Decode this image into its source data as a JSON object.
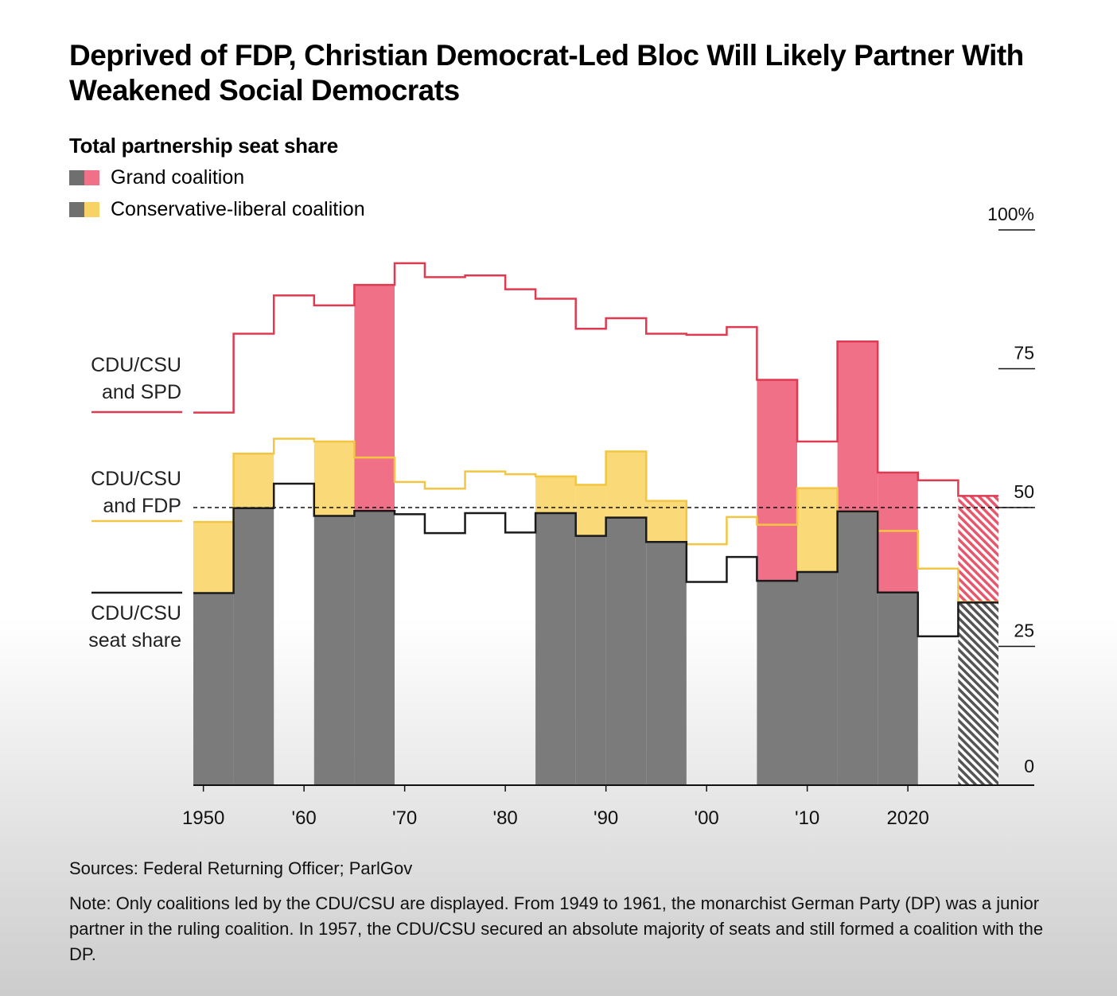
{
  "title": "Deprived of FDP, Christian Democrat-Led Bloc Will Likely Partner With Weakened Social Democrats",
  "subtitle": "Total partnership seat share",
  "legend": [
    {
      "label": "Grand coalition",
      "colors": [
        "#6f6f6f",
        "#f07088"
      ]
    },
    {
      "label": "Conservative-liberal coalition",
      "colors": [
        "#6f6f6f",
        "#f7d266"
      ]
    }
  ],
  "colors": {
    "cdu_fill": "#7b7b7b",
    "spd_fill": "#f07088",
    "fdp_fill": "#f9d978",
    "spd_line": "#e03a50",
    "fdp_line": "#f2c644",
    "cdu_line": "#1a1a1a"
  },
  "series_labels": {
    "spd": [
      "CDU/CSU",
      "and SPD"
    ],
    "fdp": [
      "CDU/CSU",
      "and FDP"
    ],
    "cdu": [
      "CDU/CSU",
      "seat share"
    ]
  },
  "chart_data": {
    "type": "area",
    "x_tick_labels": [
      "1950",
      "'60",
      "'70",
      "'80",
      "'90",
      "'00",
      "'10",
      "2020"
    ],
    "x_ticks": [
      1950,
      1960,
      1970,
      1980,
      1990,
      2000,
      2010,
      2020
    ],
    "y_tick_labels": [
      "100%",
      "75",
      "50",
      "25",
      "0"
    ],
    "y_ticks": [
      100,
      75,
      50,
      25,
      0
    ],
    "ylim": [
      0,
      100
    ],
    "xlim": [
      1949,
      2029
    ],
    "reference_line": 50,
    "periods": [
      {
        "start": 1949,
        "end": 1953,
        "cdu": 34.6,
        "fdp": 47.4,
        "spd": 67.1,
        "coalition": "conservative-liberal"
      },
      {
        "start": 1953,
        "end": 1957,
        "cdu": 49.9,
        "fdp": 59.7,
        "spd": 81.3,
        "coalition": "conservative-liberal"
      },
      {
        "start": 1957,
        "end": 1961,
        "cdu": 54.3,
        "fdp": 62.4,
        "spd": 88.2,
        "coalition": "other"
      },
      {
        "start": 1961,
        "end": 1965,
        "cdu": 48.5,
        "fdp": 61.9,
        "spd": 86.4,
        "coalition": "conservative-liberal"
      },
      {
        "start": 1965,
        "end": 1969,
        "cdu": 49.4,
        "fdp": 59.0,
        "spd": 90.1,
        "coalition": "grand"
      },
      {
        "start": 1969,
        "end": 1972,
        "cdu": 48.8,
        "fdp": 54.6,
        "spd": 94.0,
        "coalition": "none"
      },
      {
        "start": 1972,
        "end": 1976,
        "cdu": 45.4,
        "fdp": 53.4,
        "spd": 91.5,
        "coalition": "none"
      },
      {
        "start": 1976,
        "end": 1980,
        "cdu": 49.0,
        "fdp": 56.5,
        "spd": 91.8,
        "coalition": "none"
      },
      {
        "start": 1980,
        "end": 1983,
        "cdu": 45.5,
        "fdp": 56.0,
        "spd": 89.3,
        "coalition": "none"
      },
      {
        "start": 1983,
        "end": 1987,
        "cdu": 49.0,
        "fdp": 55.6,
        "spd": 87.6,
        "coalition": "conservative-liberal"
      },
      {
        "start": 1987,
        "end": 1990,
        "cdu": 44.9,
        "fdp": 54.1,
        "spd": 82.2,
        "coalition": "conservative-liberal"
      },
      {
        "start": 1990,
        "end": 1994,
        "cdu": 48.2,
        "fdp": 60.1,
        "spd": 84.1,
        "coalition": "conservative-liberal"
      },
      {
        "start": 1994,
        "end": 1998,
        "cdu": 43.8,
        "fdp": 51.2,
        "spd": 81.3,
        "coalition": "conservative-liberal"
      },
      {
        "start": 1998,
        "end": 2002,
        "cdu": 36.6,
        "fdp": 43.4,
        "spd": 81.1,
        "coalition": "none"
      },
      {
        "start": 2002,
        "end": 2005,
        "cdu": 41.1,
        "fdp": 48.3,
        "spd": 82.5,
        "coalition": "none"
      },
      {
        "start": 2005,
        "end": 2009,
        "cdu": 36.8,
        "fdp": 46.9,
        "spd": 73.0,
        "coalition": "grand"
      },
      {
        "start": 2009,
        "end": 2013,
        "cdu": 38.4,
        "fdp": 53.5,
        "spd": 61.9,
        "coalition": "conservative-liberal"
      },
      {
        "start": 2013,
        "end": 2017,
        "cdu": 49.3,
        "fdp": 49.3,
        "spd": 79.9,
        "coalition": "grand"
      },
      {
        "start": 2017,
        "end": 2021,
        "cdu": 34.7,
        "fdp": 45.8,
        "spd": 56.3,
        "coalition": "grand"
      },
      {
        "start": 2021,
        "end": 2025,
        "cdu": 26.8,
        "fdp": 39.0,
        "spd": 54.9,
        "coalition": "none"
      },
      {
        "start": 2025,
        "end": 2029,
        "cdu": 32.9,
        "fdp": 33.0,
        "spd": 52.1,
        "coalition": "projected"
      }
    ]
  },
  "footer": {
    "sources": "Sources: Federal Returning Officer; ParlGov",
    "note": "Note: Only coalitions led by the CDU/CSU are displayed. From 1949 to 1961, the monarchist German Party (DP) was a junior partner in the ruling coalition. In 1957, the CDU/CSU secured an absolute majority of seats and still formed a coalition with the DP."
  }
}
